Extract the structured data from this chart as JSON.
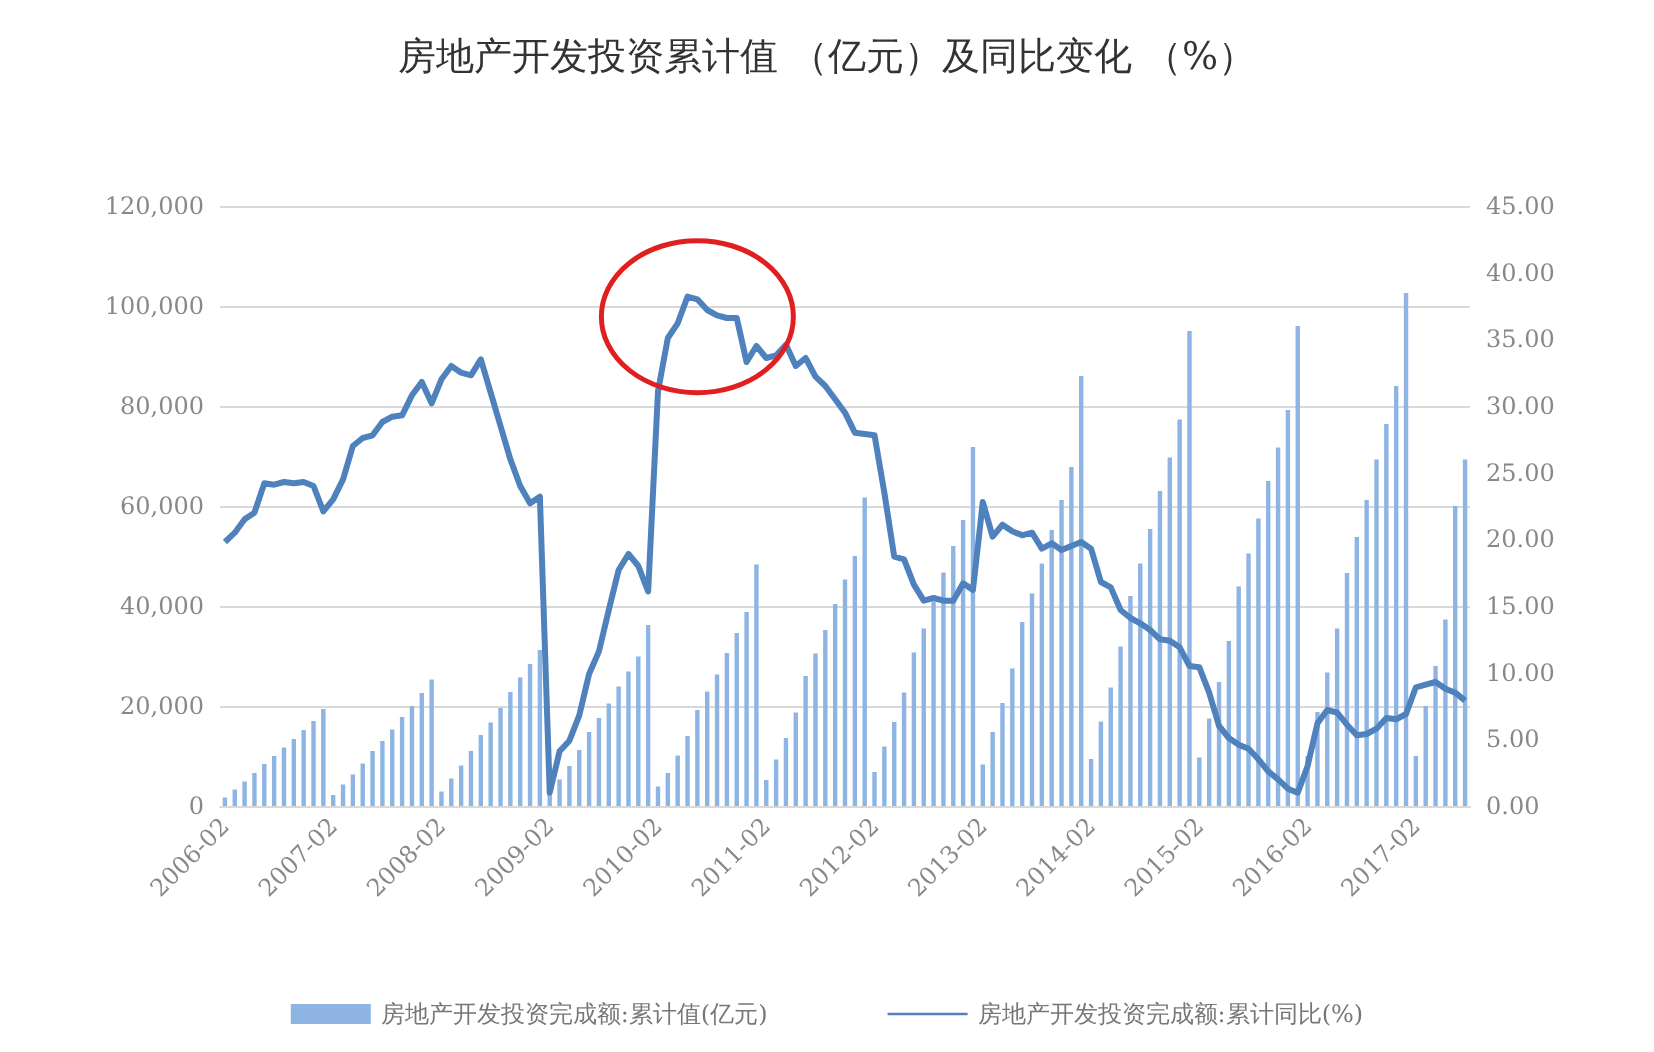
{
  "chart_data": {
    "type": "bar",
    "title": "房地产开发投资累计值 （亿元）及同比变化 （%）",
    "categories": [
      "2006-02",
      null,
      null,
      null,
      null,
      null,
      null,
      null,
      null,
      null,
      null,
      "2007-02",
      null,
      null,
      null,
      null,
      null,
      null,
      null,
      null,
      null,
      null,
      "2008-02",
      null,
      null,
      null,
      null,
      null,
      null,
      null,
      null,
      null,
      null,
      "2009-02",
      null,
      null,
      null,
      null,
      null,
      null,
      null,
      null,
      null,
      null,
      "2010-02",
      null,
      null,
      null,
      null,
      null,
      null,
      null,
      null,
      null,
      null,
      "2011-02",
      null,
      null,
      null,
      null,
      null,
      null,
      null,
      null,
      null,
      null,
      "2012-02",
      null,
      null,
      null,
      null,
      null,
      null,
      null,
      null,
      null,
      null,
      "2013-02",
      null,
      null,
      null,
      null,
      null,
      null,
      null,
      null,
      null,
      null,
      "2014-02",
      null,
      null,
      null,
      null,
      null,
      null,
      null,
      null,
      null,
      null,
      "2015-02",
      null,
      null,
      null,
      null,
      null,
      null,
      null,
      null,
      null,
      null,
      "2016-02",
      null,
      null,
      null,
      null,
      null,
      null,
      null,
      null,
      null,
      null,
      "2017-02",
      null,
      null,
      null,
      null,
      null
    ],
    "series": [
      {
        "name": "房地产开发投资完成额:累计值(亿元)",
        "color": "#8db4e2",
        "values": [
          1700,
          3300,
          4900,
          6600,
          8400,
          10000,
          11700,
          13400,
          15200,
          17000,
          19400,
          2200,
          4300,
          6300,
          8500,
          11000,
          13000,
          15300,
          17800,
          20000,
          22600,
          25300,
          2900,
          5500,
          8100,
          11000,
          14200,
          16700,
          19600,
          22800,
          25700,
          28400,
          31200,
          2800,
          5300,
          8000,
          11200,
          14800,
          17600,
          20500,
          23900,
          26900,
          29900,
          36200,
          3900,
          6600,
          10100,
          14000,
          19200,
          22900,
          26300,
          30600,
          34600,
          38800,
          48300,
          5200,
          9300,
          13600,
          18700,
          26000,
          30500,
          35200,
          40400,
          45300,
          50000,
          61700,
          6800,
          11900,
          16800,
          22700,
          30700,
          35500,
          40900,
          46700,
          52000,
          57200,
          71800,
          8300,
          14800,
          20600,
          27500,
          36800,
          42500,
          48500,
          55200,
          61200,
          67800,
          86000,
          9400,
          16900,
          23700,
          31900,
          42000,
          48500,
          55400,
          63000,
          69700,
          77300,
          95000,
          9700,
          17500,
          24800,
          33000,
          43900,
          50500,
          57500,
          65000,
          71700,
          79200,
          96000,
          10000,
          18800,
          26700,
          35500,
          46600,
          53800,
          61200,
          69300,
          76400,
          84000,
          102600,
          10000,
          20000,
          28000,
          37300,
          60000,
          69300
        ]
      },
      {
        "name": "房地产开发投资完成额:累计同比(%)",
        "type": "line",
        "axis": "y2",
        "color": "#4f81bd",
        "values": [
          19.8,
          20.5,
          21.5,
          22.0,
          24.2,
          24.1,
          24.3,
          24.2,
          24.3,
          24.0,
          22.1,
          23.0,
          24.5,
          27.0,
          27.6,
          27.8,
          28.8,
          29.2,
          29.3,
          30.8,
          31.8,
          30.2,
          32.0,
          33.0,
          32.5,
          32.3,
          33.5,
          31.0,
          28.5,
          26.0,
          24.0,
          22.7,
          23.2,
          1.0,
          4.1,
          4.9,
          6.8,
          9.9,
          11.6,
          14.7,
          17.7,
          18.9,
          18.0,
          16.1,
          31.1,
          35.1,
          36.2,
          38.2,
          38.0,
          37.2,
          36.8,
          36.6,
          36.6,
          33.3,
          34.5,
          33.6,
          33.8,
          34.6,
          33.0,
          33.6,
          32.2,
          31.5,
          30.5,
          29.5,
          28.0,
          27.9,
          27.8,
          23.5,
          18.7,
          18.5,
          16.6,
          15.4,
          15.6,
          15.4,
          15.4,
          16.7,
          16.2,
          22.8,
          20.2,
          21.1,
          20.6,
          20.3,
          20.5,
          19.3,
          19.7,
          19.2,
          19.5,
          19.8,
          19.3,
          16.8,
          16.4,
          14.7,
          14.1,
          13.7,
          13.2,
          12.5,
          12.4,
          11.9,
          10.5,
          10.4,
          8.5,
          6.0,
          5.1,
          4.6,
          4.3,
          3.5,
          2.6,
          2.0,
          1.3,
          1.0,
          3.0,
          6.2,
          7.2,
          7.0,
          6.1,
          5.3,
          5.4,
          5.8,
          6.6,
          6.5,
          6.9,
          8.9,
          9.1,
          9.3,
          8.8,
          8.5,
          7.9
        ]
      }
    ],
    "ylim": [
      0,
      120000
    ],
    "yticks": [
      {
        "value": 0,
        "label": "0"
      },
      {
        "value": 20000,
        "label": "20,000"
      },
      {
        "value": 40000,
        "label": "40,000"
      },
      {
        "value": 60000,
        "label": "60,000"
      },
      {
        "value": 80000,
        "label": "80,000"
      },
      {
        "value": 100000,
        "label": "100,000"
      },
      {
        "value": 120000,
        "label": "120,000"
      }
    ],
    "y2lim": [
      0,
      45
    ],
    "y2ticks": [
      {
        "value": 0,
        "label": "0.00"
      },
      {
        "value": 5,
        "label": "5.00"
      },
      {
        "value": 10,
        "label": "10.00"
      },
      {
        "value": 15,
        "label": "15.00"
      },
      {
        "value": 20,
        "label": "20.00"
      },
      {
        "value": 25,
        "label": "25.00"
      },
      {
        "value": 30,
        "label": "30.00"
      },
      {
        "value": 35,
        "label": "35.00"
      },
      {
        "value": 40,
        "label": "40.00"
      },
      {
        "value": 45,
        "label": "45.00"
      }
    ],
    "grid": "y",
    "legend": "bottom",
    "marker": "none"
  }
}
